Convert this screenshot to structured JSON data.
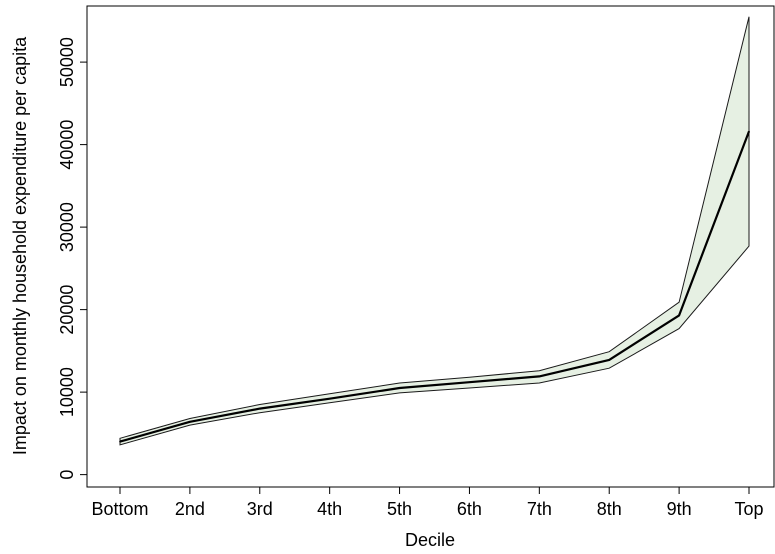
{
  "chart_data": {
    "type": "line",
    "title": "",
    "xlabel": "Decile",
    "ylabel": "Impact on monthly household expenditure per capita",
    "categories": [
      "Bottom",
      "2nd",
      "3rd",
      "4th",
      "5th",
      "6th",
      "7th",
      "8th",
      "9th",
      "Top"
    ],
    "ylim": [
      -1500,
      56800
    ],
    "yticks": [
      0,
      10000,
      20000,
      30000,
      40000,
      50000
    ],
    "grid": false,
    "series": [
      {
        "values": [
          4000,
          6400,
          8000,
          9200,
          10500,
          11200,
          11900,
          13900,
          19300,
          41600
        ]
      }
    ],
    "band": {
      "upper": [
        4400,
        6800,
        8500,
        9800,
        11100,
        11800,
        12600,
        14900,
        20900,
        55500
      ],
      "lower": [
        3600,
        6000,
        7500,
        8700,
        9900,
        10500,
        11100,
        12900,
        17700,
        27700
      ]
    },
    "colors": {
      "band_fill": "#e6f0e3",
      "band_edge": "#1a1a1a",
      "line": "#000000"
    }
  }
}
